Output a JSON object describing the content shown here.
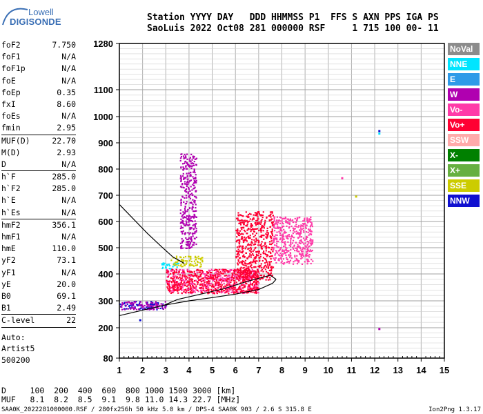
{
  "logo": {
    "line1": "Lowell",
    "line2": "DIGISONDE"
  },
  "header": {
    "line1": "Station YYYY DAY   DDD HHMMSS P1  FFS S AXN PPS IGA PS",
    "line2": "SaoLuis 2022 Oct08 281 000000 RSF     1 715 100 00- 11"
  },
  "params": [
    [
      {
        "label": "foF2",
        "value": "7.750"
      },
      {
        "label": "foF1",
        "value": "N/A"
      },
      {
        "label": "foF1p",
        "value": "N/A"
      },
      {
        "label": "foE",
        "value": "N/A"
      },
      {
        "label": "foEp",
        "value": "0.35"
      },
      {
        "label": "fxI",
        "value": "8.60"
      },
      {
        "label": "foEs",
        "value": "N/A"
      },
      {
        "label": "fmin",
        "value": "2.95"
      }
    ],
    [
      {
        "label": "MUF(D)",
        "value": "22.70"
      },
      {
        "label": "M(D)",
        "value": "2.93"
      },
      {
        "label": "D",
        "value": "N/A"
      }
    ],
    [
      {
        "label": "h`F",
        "value": "285.0"
      },
      {
        "label": "h`F2",
        "value": "285.0"
      },
      {
        "label": "h`E",
        "value": "N/A"
      },
      {
        "label": "h`Es",
        "value": "N/A"
      }
    ],
    [
      {
        "label": "hmF2",
        "value": "356.1"
      },
      {
        "label": "hmF1",
        "value": "N/A"
      },
      {
        "label": "hmE",
        "value": "110.0"
      },
      {
        "label": "yF2",
        "value": "73.1"
      },
      {
        "label": "yF1",
        "value": "N/A"
      },
      {
        "label": "yE",
        "value": "20.0"
      },
      {
        "label": "B0",
        "value": "69.1"
      },
      {
        "label": "B1",
        "value": "2.49"
      }
    ],
    [
      {
        "label": "C-level",
        "value": "22"
      }
    ]
  ],
  "auto": {
    "line1": "Auto:",
    "line2": "Artist5",
    "line3": "500200"
  },
  "legend": [
    {
      "label": "NoVal",
      "color": "#8c8c8c"
    },
    {
      "label": "NNE",
      "color": "#00e5ff"
    },
    {
      "label": "E",
      "color": "#2e9ae8"
    },
    {
      "label": "W",
      "color": "#b000b0"
    },
    {
      "label": "Vo-",
      "color": "#ff3aa8"
    },
    {
      "label": "Vo+",
      "color": "#ff0033"
    },
    {
      "label": "SSW",
      "color": "#ffaaaa"
    },
    {
      "label": "X-",
      "color": "#008000"
    },
    {
      "label": "X+",
      "color": "#66b040"
    },
    {
      "label": "SSE",
      "color": "#cccc00"
    },
    {
      "label": "NNW",
      "color": "#1010d0"
    }
  ],
  "bottom": {
    "dline": "D     100  200  400  600  800 1000 1500 3000 [km]",
    "mufline": "MUF   8.1  8.2  8.5  9.1  9.8 11.0 14.3 22.7 [MHz]"
  },
  "footer": {
    "left": "SAA0K_2022281000000.RSF / 280fx256h 50 kHz 5.0 km / DPS-4 SAA0K 903 / 2.6 S 315.8 E",
    "right": "Ion2Png 1.3.17"
  },
  "chart_data": {
    "type": "scatter",
    "xlim": [
      1,
      15
    ],
    "ylim": [
      80,
      1280
    ],
    "x_ticks": [
      "1",
      "2",
      "3",
      "4",
      "5",
      "6",
      "7",
      "8",
      "9",
      "10",
      "11",
      "12",
      "13",
      "14",
      "15"
    ],
    "y_ticks": [
      {
        "v": 80,
        "label": "80"
      },
      {
        "v": 200,
        "label": "200"
      },
      {
        "v": 300,
        "label": "300"
      },
      {
        "v": 400,
        "label": "400"
      },
      {
        "v": 500,
        "label": "500"
      },
      {
        "v": 600,
        "label": "600"
      },
      {
        "v": 700,
        "label": "700"
      },
      {
        "v": 800,
        "label": "800"
      },
      {
        "v": 900,
        "label": "900"
      },
      {
        "v": 1000,
        "label": "1000"
      },
      {
        "v": 1100,
        "label": "1100"
      },
      {
        "v": 1280,
        "label": "1280"
      }
    ],
    "grid": true,
    "ionogram_trace_clusters": [
      {
        "f": [
          1.0,
          3.0
        ],
        "h": [
          270,
          300
        ],
        "color": "#1010d0"
      },
      {
        "f": [
          1.0,
          3.0
        ],
        "h": [
          270,
          300
        ],
        "color": "#b000b0"
      },
      {
        "f": [
          2.8,
          3.6
        ],
        "h": [
          420,
          445
        ],
        "color": "#00e5ff"
      },
      {
        "f": [
          3.2,
          4.6
        ],
        "h": [
          430,
          470
        ],
        "color": "#cccc00"
      },
      {
        "f": [
          3.0,
          7.0
        ],
        "h": [
          330,
          420
        ],
        "color": "#ff3aa8"
      },
      {
        "f": [
          3.0,
          7.0
        ],
        "h": [
          330,
          420
        ],
        "color": "#ff0033"
      },
      {
        "f": [
          6.0,
          7.6
        ],
        "h": [
          380,
          640
        ],
        "color": "#ff0033"
      },
      {
        "f": [
          7.6,
          9.3
        ],
        "h": [
          440,
          620
        ],
        "color": "#ff3aa8"
      },
      {
        "f": [
          3.6,
          4.3
        ],
        "h": [
          500,
          860
        ],
        "color": "#b000b0"
      }
    ],
    "profile_curve": [
      {
        "f": 1.0,
        "h": 245
      },
      {
        "f": 2.0,
        "h": 265
      },
      {
        "f": 3.0,
        "h": 285
      },
      {
        "f": 4.0,
        "h": 300
      },
      {
        "f": 5.0,
        "h": 312
      },
      {
        "f": 6.0,
        "h": 325
      },
      {
        "f": 7.0,
        "h": 342
      },
      {
        "f": 7.6,
        "h": 365
      },
      {
        "f": 7.75,
        "h": 380
      }
    ],
    "profile_curve_upper": [
      {
        "f": 7.75,
        "h": 380
      },
      {
        "f": 7.5,
        "h": 395
      },
      {
        "f": 6.5,
        "h": 372
      },
      {
        "f": 5.5,
        "h": 345
      },
      {
        "f": 4.5,
        "h": 325
      },
      {
        "f": 3.5,
        "h": 305
      },
      {
        "f": 2.95,
        "h": 285
      }
    ],
    "dashed_curve": [
      {
        "f": 1.0,
        "h": 665
      },
      {
        "f": 1.6,
        "h": 610
      },
      {
        "f": 2.2,
        "h": 555
      },
      {
        "f": 2.8,
        "h": 505
      },
      {
        "f": 3.3,
        "h": 465
      },
      {
        "f": 3.8,
        "h": 440
      }
    ],
    "isolated_points": [
      {
        "f": 12.2,
        "h": 945,
        "color": "#1010d0"
      },
      {
        "f": 12.2,
        "h": 935,
        "color": "#00e5ff"
      },
      {
        "f": 12.2,
        "h": 195,
        "color": "#b000b0"
      },
      {
        "f": 1.9,
        "h": 228,
        "color": "#1010d0"
      },
      {
        "f": 10.6,
        "h": 765,
        "color": "#ff3aa8"
      },
      {
        "f": 11.2,
        "h": 695,
        "color": "#cccc00"
      }
    ]
  }
}
